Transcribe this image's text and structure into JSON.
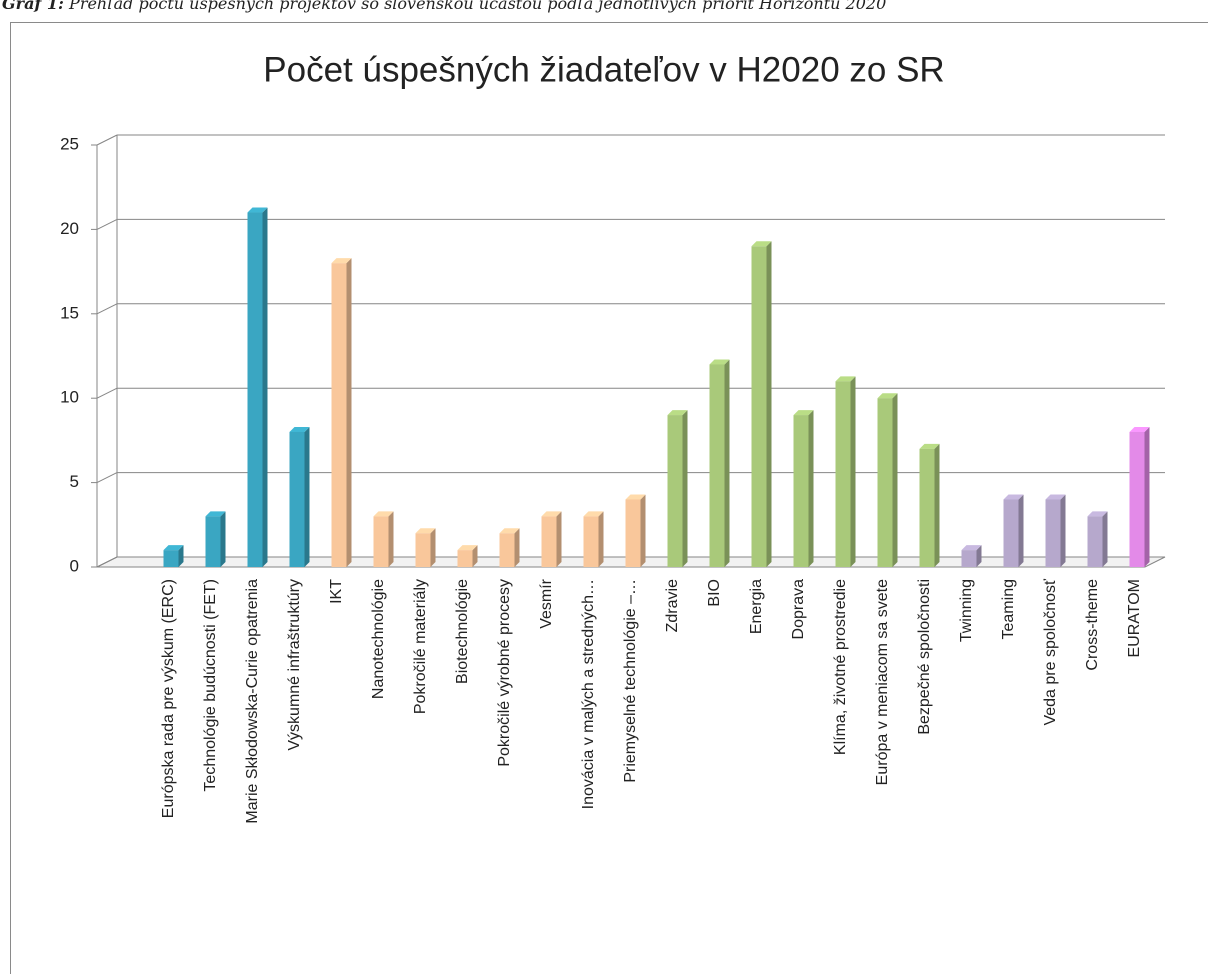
{
  "caption_label": "Graf 1:",
  "caption": "Prehľad počtu úspešných projektov so slovenskou účasťou podľa jednotlivých priorít Horizontu 2020",
  "chart_data": {
    "type": "bar",
    "title": "Počet úspešných žiadateľov v H2020 zo SR",
    "categories": [
      "Európska rada pre výskum (ERC)",
      "Technológie budúcnosti (FET)",
      "Marie Skłodowska-Curie opatrenia",
      "Výskumné infraštruktúry",
      "IKT",
      "Nanotechnológie",
      "Pokročilé  materiály",
      "Biotechnológie",
      "Pokročilé výrobné procesy",
      "Vesmír",
      "Inovácia v malých a stredných…",
      "Priemyselné technológie –…",
      "Zdravie",
      "BIO",
      "Energia",
      "Doprava",
      "Klíma, životné prostredie",
      "Európa v meniacom sa svete",
      "Bezpečné spoločnosti",
      "Twinning",
      "Teaming",
      "Veda pre spoločnosť",
      "Cross-theme",
      "EURATOM"
    ],
    "values": [
      1,
      3,
      21,
      8,
      18,
      3,
      2,
      1,
      2,
      3,
      3,
      4,
      9,
      12,
      19,
      9,
      11,
      10,
      7,
      1,
      4,
      4,
      3,
      8
    ],
    "colors": [
      "#3aa6c2",
      "#3aa6c2",
      "#3aa6c2",
      "#3aa6c2",
      "#f9c79b",
      "#f9c79b",
      "#f9c79b",
      "#f9c79b",
      "#f9c79b",
      "#f9c79b",
      "#f9c79b",
      "#f9c79b",
      "#a9c97a",
      "#a9c97a",
      "#a9c97a",
      "#a9c97a",
      "#a9c97a",
      "#a9c97a",
      "#a9c97a",
      "#b6a8cc",
      "#b6a8cc",
      "#b6a8cc",
      "#b6a8cc",
      "#e38ae8"
    ],
    "ylim": [
      0,
      25
    ],
    "yticks": [
      0,
      5,
      10,
      15,
      20,
      25
    ],
    "grid": true
  }
}
